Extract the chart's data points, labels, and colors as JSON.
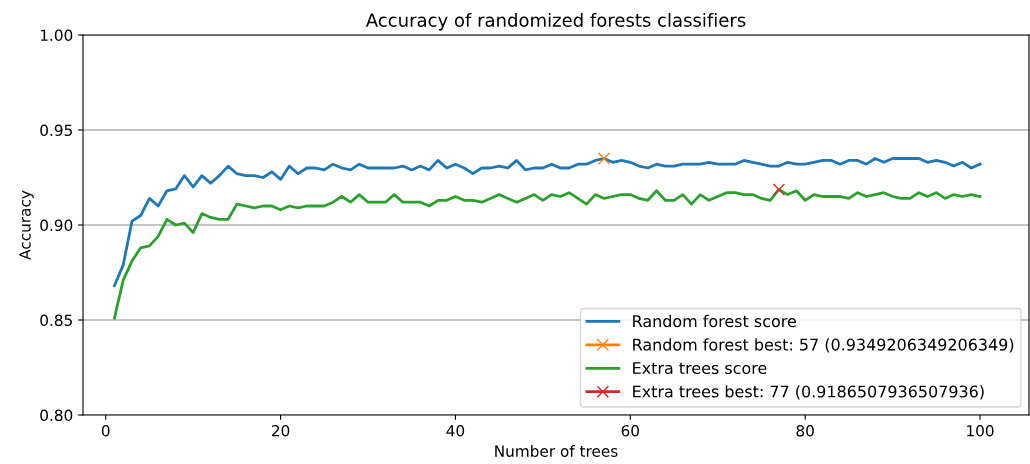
{
  "chart_data": {
    "type": "line",
    "title": "Accuracy of randomized forests classifiers",
    "xlabel": "Number of trees",
    "ylabel": "Accuracy",
    "xlim": [
      -2.6,
      105.6
    ],
    "xticks": [
      0,
      20,
      40,
      60,
      80,
      100
    ],
    "ylim": [
      0.8,
      1.0
    ],
    "yticks": [
      {
        "value": 0.8,
        "label": "0.80"
      },
      {
        "value": 0.85,
        "label": "0.85"
      },
      {
        "value": 0.9,
        "label": "0.90"
      },
      {
        "value": 0.95,
        "label": "0.95"
      },
      {
        "value": 1.0,
        "label": "1.00"
      }
    ],
    "grid": "y",
    "legend": "bottom right",
    "marker": "none",
    "line_style": "solid",
    "series": [
      {
        "name": "Random forest score",
        "color": "#1f77b4",
        "x": [
          1,
          2,
          3,
          4,
          5,
          6,
          7,
          8,
          9,
          10,
          11,
          12,
          13,
          14,
          15,
          16,
          17,
          18,
          19,
          20,
          21,
          22,
          23,
          24,
          25,
          26,
          27,
          28,
          29,
          30,
          31,
          32,
          33,
          34,
          35,
          36,
          37,
          38,
          39,
          40,
          41,
          42,
          43,
          44,
          45,
          46,
          47,
          48,
          49,
          50,
          51,
          52,
          53,
          54,
          55,
          56,
          57,
          58,
          59,
          60,
          61,
          62,
          63,
          64,
          65,
          66,
          67,
          68,
          69,
          70,
          71,
          72,
          73,
          74,
          75,
          76,
          77,
          78,
          79,
          80,
          81,
          82,
          83,
          84,
          85,
          86,
          87,
          88,
          89,
          90,
          91,
          92,
          93,
          94,
          95,
          96,
          97,
          98,
          99,
          100
        ],
        "values": [
          0.868,
          0.879,
          0.902,
          0.905,
          0.914,
          0.91,
          0.918,
          0.919,
          0.926,
          0.92,
          0.926,
          0.922,
          0.926,
          0.931,
          0.927,
          0.926,
          0.926,
          0.925,
          0.928,
          0.924,
          0.931,
          0.927,
          0.93,
          0.93,
          0.929,
          0.932,
          0.93,
          0.929,
          0.932,
          0.93,
          0.93,
          0.93,
          0.93,
          0.931,
          0.929,
          0.931,
          0.929,
          0.934,
          0.93,
          0.932,
          0.93,
          0.927,
          0.93,
          0.93,
          0.931,
          0.93,
          0.934,
          0.929,
          0.93,
          0.93,
          0.932,
          0.93,
          0.93,
          0.932,
          0.932,
          0.934,
          0.935,
          0.933,
          0.934,
          0.933,
          0.931,
          0.93,
          0.932,
          0.931,
          0.931,
          0.932,
          0.932,
          0.932,
          0.933,
          0.932,
          0.932,
          0.932,
          0.934,
          0.933,
          0.932,
          0.931,
          0.931,
          0.933,
          0.932,
          0.932,
          0.933,
          0.934,
          0.934,
          0.932,
          0.934,
          0.934,
          0.932,
          0.935,
          0.933,
          0.935,
          0.935,
          0.935,
          0.935,
          0.933,
          0.934,
          0.933,
          0.931,
          0.933,
          0.93,
          0.932
        ]
      },
      {
        "name": "Random forest best: 57 (0.9349206349206349)",
        "color": "#ff7f0e",
        "marker": "cross",
        "x": [
          57
        ],
        "values": [
          0.9349206349206349
        ]
      },
      {
        "name": "Extra trees score",
        "color": "#2ca02c",
        "x": [
          1,
          2,
          3,
          4,
          5,
          6,
          7,
          8,
          9,
          10,
          11,
          12,
          13,
          14,
          15,
          16,
          17,
          18,
          19,
          20,
          21,
          22,
          23,
          24,
          25,
          26,
          27,
          28,
          29,
          30,
          31,
          32,
          33,
          34,
          35,
          36,
          37,
          38,
          39,
          40,
          41,
          42,
          43,
          44,
          45,
          46,
          47,
          48,
          49,
          50,
          51,
          52,
          53,
          54,
          55,
          56,
          57,
          58,
          59,
          60,
          61,
          62,
          63,
          64,
          65,
          66,
          67,
          68,
          69,
          70,
          71,
          72,
          73,
          74,
          75,
          76,
          77,
          78,
          79,
          80,
          81,
          82,
          83,
          84,
          85,
          86,
          87,
          88,
          89,
          90,
          91,
          92,
          93,
          94,
          95,
          96,
          97,
          98,
          99,
          100
        ],
        "values": [
          0.851,
          0.871,
          0.881,
          0.888,
          0.889,
          0.894,
          0.903,
          0.9,
          0.901,
          0.896,
          0.906,
          0.904,
          0.903,
          0.903,
          0.911,
          0.91,
          0.909,
          0.91,
          0.91,
          0.908,
          0.91,
          0.909,
          0.91,
          0.91,
          0.91,
          0.912,
          0.915,
          0.912,
          0.916,
          0.912,
          0.912,
          0.912,
          0.916,
          0.912,
          0.912,
          0.912,
          0.91,
          0.913,
          0.913,
          0.915,
          0.913,
          0.913,
          0.912,
          0.914,
          0.916,
          0.914,
          0.912,
          0.914,
          0.916,
          0.913,
          0.916,
          0.915,
          0.917,
          0.914,
          0.911,
          0.916,
          0.914,
          0.915,
          0.916,
          0.916,
          0.914,
          0.913,
          0.918,
          0.913,
          0.913,
          0.916,
          0.911,
          0.916,
          0.913,
          0.915,
          0.917,
          0.917,
          0.916,
          0.916,
          0.914,
          0.913,
          0.9187,
          0.916,
          0.918,
          0.913,
          0.916,
          0.915,
          0.915,
          0.915,
          0.914,
          0.917,
          0.915,
          0.916,
          0.917,
          0.915,
          0.914,
          0.914,
          0.917,
          0.915,
          0.917,
          0.914,
          0.916,
          0.915,
          0.916,
          0.915
        ]
      },
      {
        "name": "Extra trees best: 77 (0.9186507936507936)",
        "color": "#d62728",
        "marker": "cross",
        "x": [
          77
        ],
        "values": [
          0.9186507936507936
        ]
      }
    ]
  }
}
